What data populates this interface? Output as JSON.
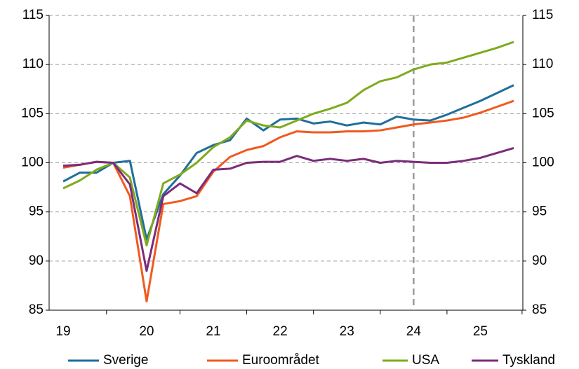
{
  "chart_data": {
    "type": "line",
    "categories": [
      "19",
      null,
      null,
      null,
      null,
      "20",
      null,
      null,
      null,
      "21",
      null,
      null,
      null,
      "22",
      null,
      null,
      null,
      "23",
      null,
      null,
      null,
      "24",
      null,
      null,
      null,
      "25",
      null,
      null
    ],
    "series": [
      {
        "name": "Sverige",
        "color": "#1f6e9c",
        "values": [
          98.1,
          99.0,
          99.0,
          100.0,
          100.2,
          92.2,
          96.8,
          98.7,
          101.0,
          101.8,
          102.3,
          104.5,
          103.3,
          104.4,
          104.5,
          104.0,
          104.2,
          103.8,
          104.1,
          103.9,
          104.7,
          104.4,
          104.3,
          104.9,
          105.6,
          106.3,
          107.1,
          107.9
        ]
      },
      {
        "name": "Euroområdet",
        "color": "#f05a1e",
        "values": [
          99.5,
          99.8,
          100.1,
          100.0,
          96.6,
          85.9,
          95.8,
          96.1,
          96.6,
          99.1,
          100.6,
          101.3,
          101.7,
          102.6,
          103.2,
          103.1,
          103.1,
          103.2,
          103.2,
          103.3,
          103.6,
          103.9,
          104.1,
          104.3,
          104.6,
          105.1,
          105.7,
          106.3
        ]
      },
      {
        "name": "USA",
        "color": "#7faa1e",
        "values": [
          97.4,
          98.2,
          99.3,
          100.0,
          98.5,
          91.6,
          97.9,
          98.8,
          100.0,
          101.6,
          102.6,
          104.3,
          103.8,
          103.6,
          104.3,
          105.0,
          105.5,
          106.1,
          107.4,
          108.3,
          108.7,
          109.5,
          110.0,
          110.2,
          110.7,
          111.2,
          111.7,
          112.3
        ]
      },
      {
        "name": "Tyskland",
        "color": "#7b2c7b",
        "values": [
          99.7,
          99.8,
          100.1,
          100.0,
          97.8,
          89.0,
          96.6,
          97.9,
          96.9,
          99.3,
          99.4,
          100.0,
          100.1,
          100.1,
          100.7,
          100.2,
          100.4,
          100.2,
          100.4,
          100.0,
          100.2,
          100.1,
          100.0,
          100.0,
          100.2,
          100.5,
          101.0,
          101.5
        ]
      }
    ],
    "ylim": [
      85,
      115
    ],
    "yticks": [
      85,
      90,
      95,
      100,
      105,
      110,
      115
    ],
    "y2lim": [
      85,
      115
    ],
    "y2ticks": [
      85,
      90,
      95,
      100,
      105,
      110,
      115
    ],
    "grid": true,
    "forecast_line_index": 21,
    "legend": "bottom"
  }
}
